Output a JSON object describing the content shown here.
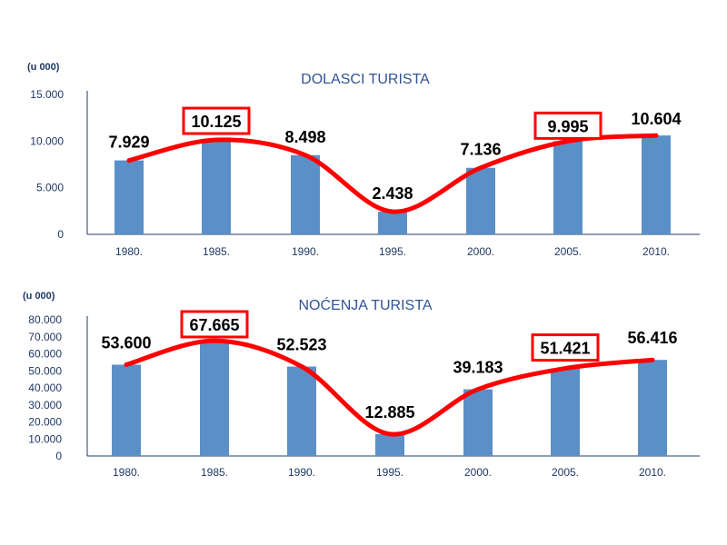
{
  "colors": {
    "bar": "#5b8fc7",
    "trend": "#ff0000",
    "highlight_box": "#ff0000",
    "axis": "#1f3864",
    "title": "#2f5496"
  },
  "chart_data": [
    {
      "type": "bar",
      "title": "DOLASCI TURISTA",
      "unit_label": "(u 000)",
      "xlabel": "",
      "ylabel": "",
      "categories": [
        "1980.",
        "1985.",
        "1990.",
        "1995.",
        "2000.",
        "2005.",
        "2010."
      ],
      "series": [
        {
          "values": [
            7929,
            10125,
            8498,
            2438,
            7136,
            9995,
            10604
          ]
        }
      ],
      "value_labels": [
        "7.929",
        "10.125",
        "8.498",
        "2.438",
        "7.136",
        "9.995",
        "10.604"
      ],
      "highlighted": [
        "1985.",
        "2005."
      ],
      "trend_line": true,
      "ylim": [
        0,
        15000
      ],
      "yticks": [
        0,
        5000,
        10000,
        15000
      ],
      "ytick_labels": [
        "0",
        "5.000",
        "10.000",
        "15.000"
      ],
      "grid": false
    },
    {
      "type": "bar",
      "title": "NOĆENJA TURISTA",
      "unit_label": "(u 000)",
      "xlabel": "",
      "ylabel": "",
      "categories": [
        "1980.",
        "1985.",
        "1990.",
        "1995.",
        "2000.",
        "2005.",
        "2010."
      ],
      "series": [
        {
          "values": [
            53600,
            67665,
            52523,
            12885,
            39183,
            51421,
            56416
          ]
        }
      ],
      "value_labels": [
        "53.600",
        "67.665",
        "52.523",
        "12.885",
        "39.183",
        "51.421",
        "56.416"
      ],
      "highlighted": [
        "1985.",
        "2005."
      ],
      "trend_line": true,
      "ylim": [
        0,
        80000
      ],
      "yticks": [
        0,
        10000,
        20000,
        30000,
        40000,
        50000,
        60000,
        70000,
        80000
      ],
      "ytick_labels": [
        "0",
        "10.000",
        "20.000",
        "30.000",
        "40.000",
        "50.000",
        "60.000",
        "70.000",
        "80.000"
      ],
      "grid": false
    }
  ]
}
